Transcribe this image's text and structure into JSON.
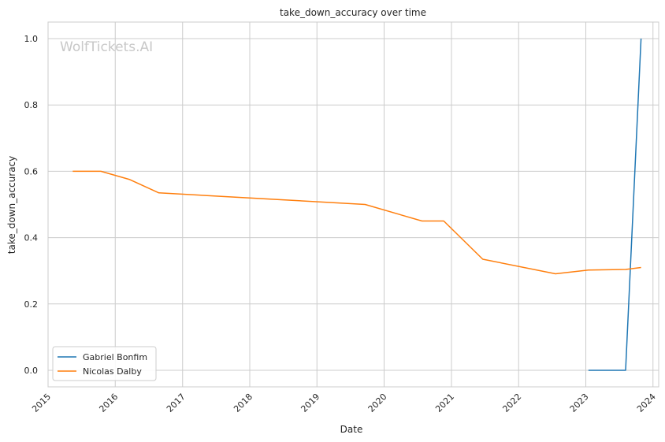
{
  "chart_data": {
    "type": "line",
    "title": "take_down_accuracy over time",
    "xlabel": "Date",
    "ylabel": "take_down_accuracy",
    "watermark": "WolfTickets.AI",
    "xlim": [
      "2015-01-01",
      "2024-02-01"
    ],
    "ylim": [
      -0.05,
      1.05
    ],
    "x_ticks": [
      "2015",
      "2016",
      "2017",
      "2018",
      "2019",
      "2020",
      "2021",
      "2022",
      "2023",
      "2024"
    ],
    "y_ticks": [
      "0.0",
      "0.2",
      "0.4",
      "0.6",
      "0.8",
      "1.0"
    ],
    "grid": true,
    "legend_position": "lower-left",
    "series": [
      {
        "name": "Gabriel Bonfim",
        "color": "#1f77b4",
        "points": [
          {
            "x": "2023-01-15",
            "y": 0.0
          },
          {
            "x": "2023-08-05",
            "y": 0.0
          },
          {
            "x": "2023-10-28",
            "y": 1.0
          }
        ]
      },
      {
        "name": "Nicolas Dalby",
        "color": "#ff7f0e",
        "points": [
          {
            "x": "2015-05-15",
            "y": 0.6
          },
          {
            "x": "2015-10-15",
            "y": 0.6
          },
          {
            "x": "2016-03-20",
            "y": 0.575
          },
          {
            "x": "2016-08-25",
            "y": 0.535
          },
          {
            "x": "2019-09-20",
            "y": 0.5
          },
          {
            "x": "2020-07-25",
            "y": 0.45
          },
          {
            "x": "2020-11-20",
            "y": 0.45
          },
          {
            "x": "2021-06-20",
            "y": 0.335
          },
          {
            "x": "2022-07-20",
            "y": 0.291
          },
          {
            "x": "2023-01-15",
            "y": 0.302
          },
          {
            "x": "2023-08-05",
            "y": 0.304
          },
          {
            "x": "2023-10-28",
            "y": 0.31
          }
        ]
      }
    ]
  }
}
